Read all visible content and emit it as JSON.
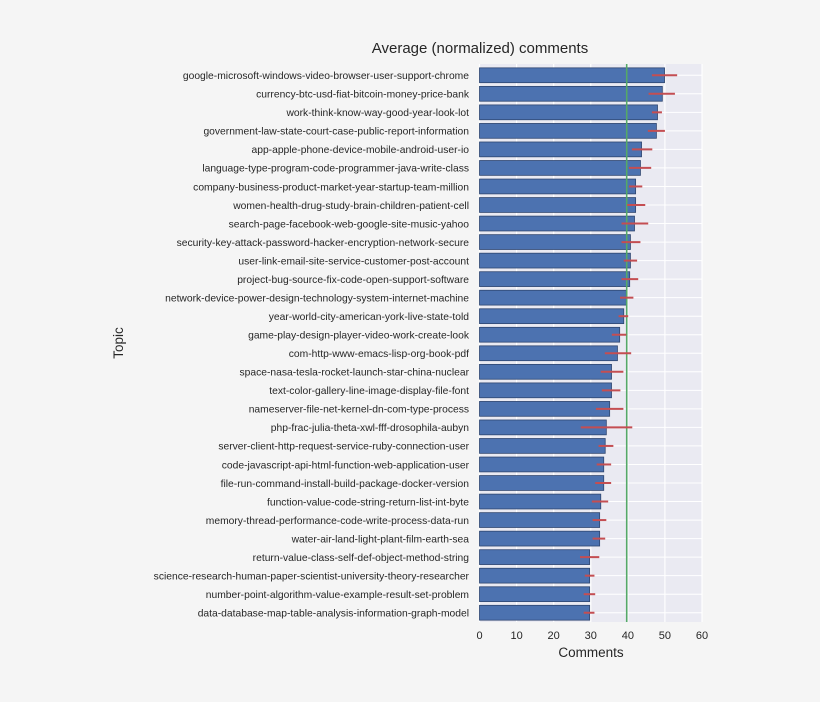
{
  "chart_data": {
    "type": "bar",
    "orientation": "horizontal",
    "title": "Average (normalized) comments",
    "xlabel": "Comments",
    "ylabel": "Topic",
    "xlim": [
      0,
      60
    ],
    "xticks": [
      0,
      10,
      20,
      30,
      40,
      50,
      60
    ],
    "grid": true,
    "reference_line": {
      "value": 39.7,
      "color": "#55a868"
    },
    "bar_color": "#4c72b0",
    "error_color": "#c44e52",
    "categories": [
      "google-microsoft-windows-video-browser-user-support-chrome",
      "currency-btc-usd-fiat-bitcoin-money-price-bank",
      "work-think-know-way-good-year-look-lot",
      "government-law-state-court-case-public-report-information",
      "app-apple-phone-device-mobile-android-user-io",
      "language-type-program-code-programmer-java-write-class",
      "company-business-product-market-year-startup-team-million",
      "women-health-drug-study-brain-children-patient-cell",
      "search-page-facebook-web-google-site-music-yahoo",
      "security-key-attack-password-hacker-encryption-network-secure",
      "user-link-email-site-service-customer-post-account",
      "project-bug-source-fix-code-open-support-software",
      "network-device-power-design-technology-system-internet-machine",
      "year-world-city-american-york-live-state-told",
      "game-play-design-player-video-work-create-look",
      "com-http-www-emacs-lisp-org-book-pdf",
      "space-nasa-tesla-rocket-launch-star-china-nuclear",
      "text-color-gallery-line-image-display-file-font",
      "nameserver-file-net-kernel-dn-com-type-process",
      "php-frac-julia-theta-xwl-fff-drosophila-aubyn",
      "server-client-http-request-service-ruby-connection-user",
      "code-javascript-api-html-function-web-application-user",
      "file-run-command-install-build-package-docker-version",
      "function-value-code-string-return-list-int-byte",
      "memory-thread-performance-code-write-process-data-run",
      "water-air-land-light-plant-film-earth-sea",
      "return-value-class-self-def-object-method-string",
      "science-research-human-paper-scientist-university-theory-researcher",
      "number-point-algorithm-value-example-result-set-problem",
      "data-database-map-table-analysis-information-graph-model"
    ],
    "values": [
      49.9,
      49.3,
      48.0,
      47.7,
      43.7,
      43.4,
      42.1,
      42.1,
      41.8,
      40.7,
      40.7,
      40.5,
      39.6,
      38.9,
      37.8,
      37.2,
      35.6,
      35.6,
      35.1,
      34.2,
      33.9,
      33.5,
      33.5,
      32.7,
      32.4,
      32.4,
      29.7,
      29.7,
      29.7,
      29.7
    ],
    "error_low": [
      46.5,
      45.6,
      46.5,
      45.4,
      41.1,
      40.3,
      40.3,
      39.8,
      38.3,
      38.3,
      38.9,
      38.3,
      37.9,
      37.5,
      35.7,
      33.8,
      32.7,
      33.0,
      31.4,
      27.3,
      32.1,
      31.6,
      31.2,
      30.3,
      30.5,
      30.5,
      27.1,
      28.4,
      28.1,
      28.1
    ],
    "error_high": [
      53.3,
      52.7,
      49.2,
      50.0,
      46.6,
      46.3,
      43.9,
      44.7,
      45.5,
      43.4,
      42.5,
      42.8,
      41.5,
      40.1,
      39.6,
      40.9,
      38.8,
      38.0,
      38.8,
      41.2,
      36.1,
      35.5,
      35.5,
      34.7,
      34.2,
      33.9,
      32.3,
      31.0,
      31.2,
      31.0
    ]
  }
}
